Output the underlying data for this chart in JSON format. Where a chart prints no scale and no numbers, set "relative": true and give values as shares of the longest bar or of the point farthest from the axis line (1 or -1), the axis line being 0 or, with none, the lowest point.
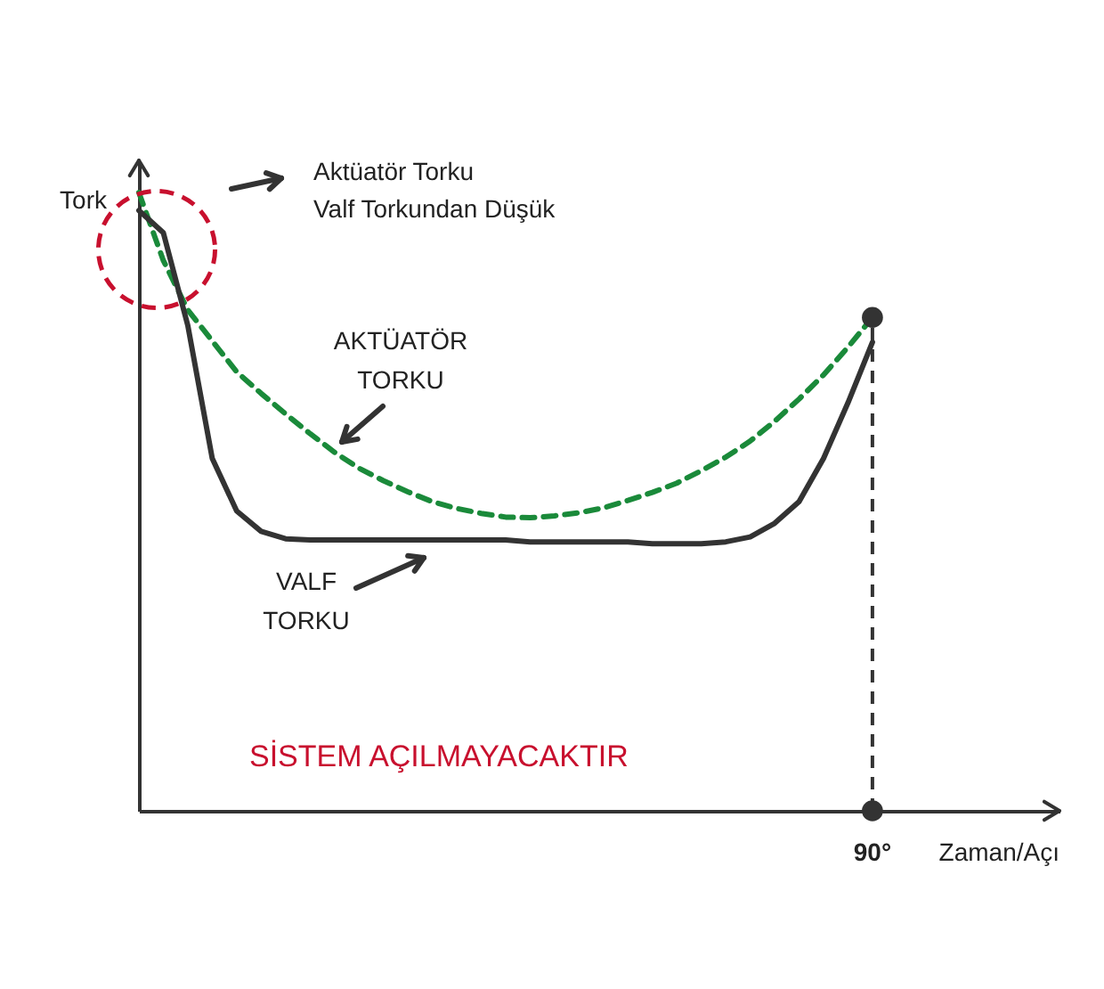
{
  "chart_data": {
    "type": "line",
    "relative": true,
    "xlabel": "Zaman/Açı",
    "ylabel": "Tork",
    "grid": false,
    "categories": [
      null,
      null,
      null,
      null,
      null,
      null,
      null,
      null,
      null,
      null,
      null,
      null,
      null,
      null,
      null,
      null,
      null,
      null,
      null,
      null,
      null,
      null,
      null,
      null,
      null,
      null,
      null,
      null,
      null,
      null,
      null
    ],
    "series": [
      {
        "name": "AKTÜATÖR TORKU",
        "color": "#1a8a3a",
        "line_style": "dashed",
        "values": [
          1.0,
          0.89,
          0.81,
          0.76,
          0.71,
          0.675,
          0.642,
          0.61,
          0.58,
          0.554,
          0.534,
          0.516,
          0.5,
          0.489,
          0.481,
          0.475,
          0.474,
          0.477,
          0.482,
          0.49,
          0.502,
          0.515,
          0.53,
          0.55,
          0.572,
          0.598,
          0.63,
          0.666,
          0.705,
          0.75,
          0.798
        ]
      },
      {
        "name": "VALF TORKU",
        "color": "#333333",
        "line_style": "solid",
        "values": [
          0.971,
          0.935,
          0.785,
          0.57,
          0.485,
          0.452,
          0.44,
          0.438,
          0.438,
          0.438,
          0.438,
          0.438,
          0.438,
          0.438,
          0.438,
          0.438,
          0.435,
          0.435,
          0.435,
          0.435,
          0.435,
          0.432,
          0.432,
          0.432,
          0.435,
          0.443,
          0.465,
          0.5,
          0.57,
          0.66,
          0.758
        ]
      }
    ],
    "ref_lines": [
      {
        "axis": "x",
        "label": "90°",
        "color": "#333333",
        "line_style": "dashed"
      }
    ],
    "annotations": [
      "Aktüatör Torku\nValf Torkundan Düşük",
      "SİSTEM AÇILMAYACAKTIR"
    ]
  }
}
